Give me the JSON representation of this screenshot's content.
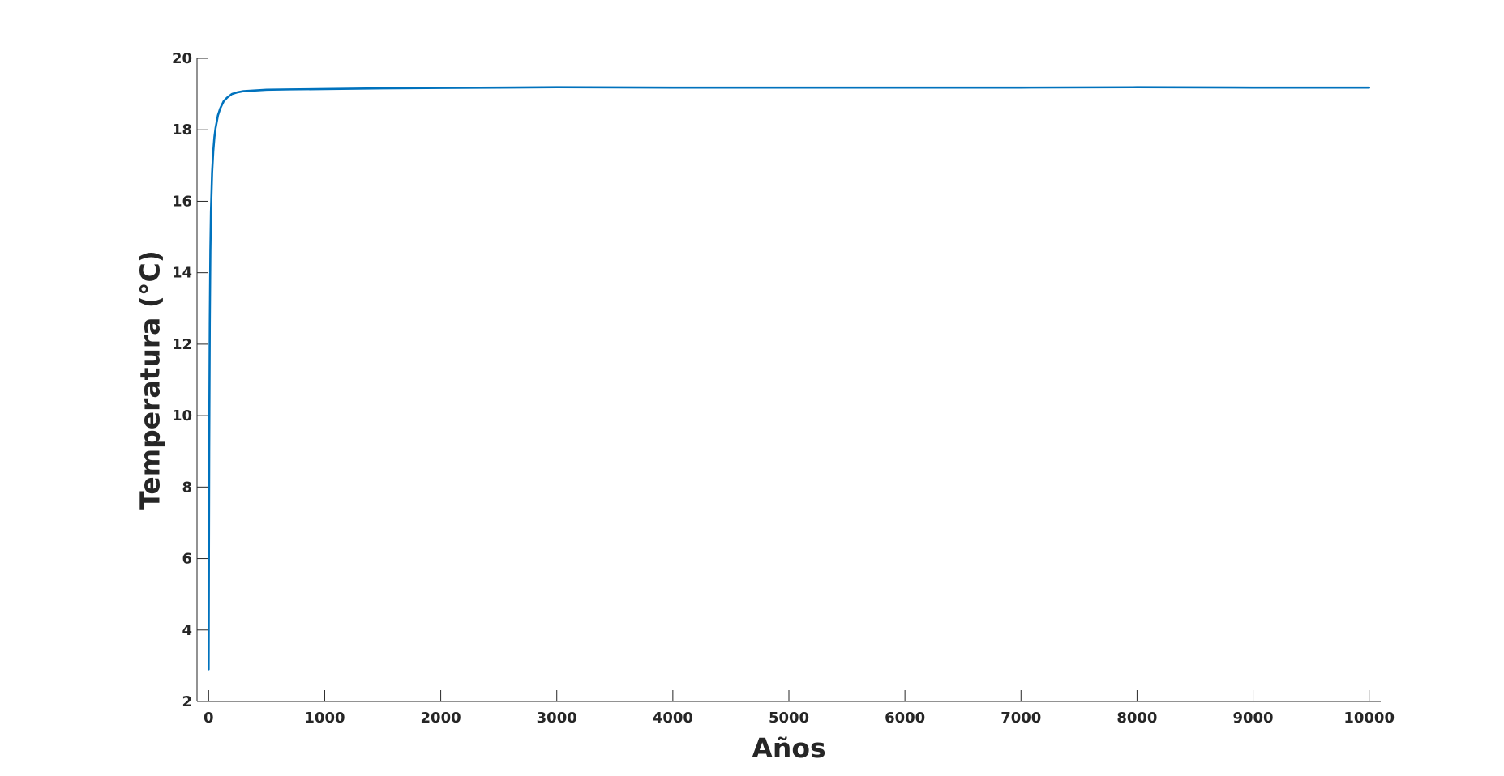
{
  "chart_data": {
    "type": "line",
    "title": "",
    "xlabel": "Años",
    "ylabel": "Temperatura (°C)",
    "xlim": [
      -100,
      10100
    ],
    "ylim": [
      2,
      20
    ],
    "xticks": [
      0,
      1000,
      2000,
      3000,
      4000,
      5000,
      6000,
      7000,
      8000,
      9000,
      10000
    ],
    "yticks": [
      2,
      4,
      6,
      8,
      10,
      12,
      14,
      16,
      18,
      20
    ],
    "xtick_labels": [
      "0",
      "1000",
      "2000",
      "3000",
      "4000",
      "5000",
      "6000",
      "7000",
      "8000",
      "9000",
      "10000"
    ],
    "ytick_labels": [
      "2",
      "4",
      "6",
      "8",
      "10",
      "12",
      "14",
      "16",
      "18",
      "20"
    ],
    "grid": false,
    "series": [
      {
        "name": "Temperatura",
        "color": "#0072BD",
        "x": [
          0,
          5,
          10,
          15,
          20,
          30,
          40,
          50,
          60,
          80,
          100,
          130,
          160,
          200,
          250,
          300,
          400,
          500,
          700,
          1000,
          1500,
          2000,
          2500,
          3000,
          4000,
          5000,
          6000,
          7000,
          8000,
          9000,
          10000
        ],
        "y": [
          2.9,
          9.0,
          12.6,
          14.6,
          15.7,
          16.8,
          17.4,
          17.8,
          18.05,
          18.4,
          18.6,
          18.8,
          18.9,
          19.0,
          19.05,
          19.08,
          19.1,
          19.12,
          19.13,
          19.14,
          19.16,
          19.17,
          19.18,
          19.19,
          19.18,
          19.18,
          19.18,
          19.18,
          19.19,
          19.18,
          19.18
        ]
      }
    ]
  }
}
